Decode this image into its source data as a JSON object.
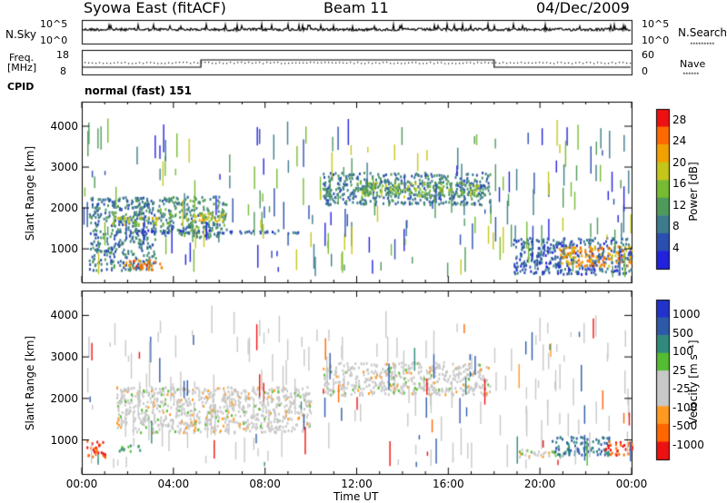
{
  "header": {
    "station": "Syowa East (fitACF)",
    "beam": "Beam 11",
    "date": "04/Dec/2009"
  },
  "noise_panel": {
    "left_label": "N.Sky",
    "right_label": "N.Search",
    "left_ticks": [
      "10^5",
      "10^0"
    ],
    "right_ticks": [
      "10^5",
      "10^0"
    ]
  },
  "freq_panel": {
    "left_label_1": "Freq.",
    "left_label_2": "[MHz]",
    "right_label": "Nave",
    "left_ticks": [
      "18",
      "8"
    ],
    "right_ticks": [
      "60",
      "0"
    ]
  },
  "cpid": {
    "label": "CPID",
    "mode": "normal (fast) 151"
  },
  "colors": {
    "power_scale": [
      "#2222dd",
      "#2b4fb0",
      "#3c7c8c",
      "#4f9a5a",
      "#77bb33",
      "#c6c61a",
      "#f0a000",
      "#ff6a00",
      "#ee1010"
    ],
    "velocity_scale": [
      "#2233cc",
      "#2d5aa8",
      "#2f8a7c",
      "#55bb33",
      "#c8c8c8",
      "#c8c8c8",
      "#ff9922",
      "#ff6600",
      "#ee1111"
    ]
  },
  "chart_data": [
    {
      "type": "heatmap",
      "panel": "power",
      "ylabel": "Slant Range [km]",
      "ylim": [
        180,
        4600
      ],
      "yticks": [
        "4000",
        "3000",
        "2000",
        "1000"
      ],
      "ytick_values": [
        4000,
        3000,
        2000,
        1000
      ],
      "xlim_hours": [
        0,
        24
      ],
      "colorbar": {
        "label": "Power [dB]",
        "ticks": [
          "28",
          "24",
          "20",
          "16",
          "12",
          "8",
          "4"
        ],
        "tick_values": [
          28,
          24,
          20,
          16,
          12,
          8,
          4
        ],
        "range": [
          0,
          30
        ]
      },
      "features": [
        {
          "t": [
            0.3,
            3.2
          ],
          "range": [
            500,
            2300
          ],
          "value": 8
        },
        {
          "t": [
            1.3,
            3.3
          ],
          "range": [
            1600,
            1800
          ],
          "value": 18
        },
        {
          "t": [
            1.8,
            3.5
          ],
          "range": [
            520,
            760
          ],
          "value": 24
        },
        {
          "t": [
            3.3,
            6.3
          ],
          "range": [
            1300,
            2300
          ],
          "value": 10
        },
        {
          "t": [
            4.5,
            6.2
          ],
          "range": [
            1700,
            1900
          ],
          "value": 18
        },
        {
          "t": [
            2.0,
            9.8
          ],
          "range": [
            1400,
            1480
          ],
          "value": 6
        },
        {
          "t": [
            10.5,
            17.8
          ],
          "range": [
            2100,
            2900
          ],
          "value": 8
        },
        {
          "t": [
            12.0,
            17.3
          ],
          "range": [
            2300,
            2650
          ],
          "value": 14
        },
        {
          "t": [
            18.8,
            24.0
          ],
          "range": [
            400,
            1300
          ],
          "value": 6
        },
        {
          "t": [
            20.8,
            24.0
          ],
          "range": [
            600,
            1100
          ],
          "value": 22
        }
      ]
    },
    {
      "type": "heatmap",
      "panel": "velocity",
      "ylabel": "Slant Range [km]",
      "xlabel": "Time UT",
      "ylim": [
        180,
        4600
      ],
      "yticks": [
        "4000",
        "3000",
        "2000",
        "1000"
      ],
      "ytick_values": [
        4000,
        3000,
        2000,
        1000
      ],
      "xlim_hours": [
        0,
        24
      ],
      "xticks": [
        "00:00",
        "04:00",
        "08:00",
        "12:00",
        "16:00",
        "20:00",
        "00:00"
      ],
      "colorbar": {
        "label": "Velocity [m s⁻¹]",
        "ticks": [
          "1000",
          "500",
          "100",
          "25",
          "-25",
          "-100",
          "-500",
          "-1000"
        ]
      },
      "features": [
        {
          "t": [
            1.5,
            10.0
          ],
          "range": [
            1200,
            2300
          ],
          "value": 0
        },
        {
          "t": [
            10.5,
            17.8
          ],
          "range": [
            2100,
            2900
          ],
          "value": 0
        },
        {
          "t": [
            0.2,
            1.0
          ],
          "range": [
            600,
            1000
          ],
          "value": -300
        },
        {
          "t": [
            1.6,
            2.6
          ],
          "range": [
            750,
            900
          ],
          "value": 60
        },
        {
          "t": [
            19.0,
            21.0
          ],
          "range": [
            600,
            800
          ],
          "value": 0
        },
        {
          "t": [
            20.5,
            23.0
          ],
          "range": [
            650,
            1100
          ],
          "value": 300
        },
        {
          "t": [
            22.8,
            24.0
          ],
          "range": [
            650,
            1000
          ],
          "value": -300
        }
      ]
    }
  ]
}
